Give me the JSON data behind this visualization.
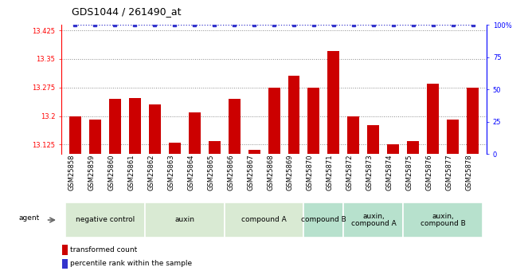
{
  "title": "GDS1044 / 261490_at",
  "samples": [
    "GSM25858",
    "GSM25859",
    "GSM25860",
    "GSM25861",
    "GSM25862",
    "GSM25863",
    "GSM25864",
    "GSM25865",
    "GSM25866",
    "GSM25867",
    "GSM25868",
    "GSM25869",
    "GSM25870",
    "GSM25871",
    "GSM25872",
    "GSM25873",
    "GSM25874",
    "GSM25875",
    "GSM25876",
    "GSM25877",
    "GSM25878"
  ],
  "values": [
    13.2,
    13.19,
    13.245,
    13.248,
    13.23,
    13.13,
    13.21,
    13.135,
    13.245,
    13.11,
    13.275,
    13.305,
    13.275,
    13.37,
    13.2,
    13.175,
    13.125,
    13.135,
    13.285,
    13.19,
    13.275
  ],
  "ylim_left": [
    13.1,
    13.44
  ],
  "ylim_right": [
    0,
    100
  ],
  "yticks_left": [
    13.125,
    13.2,
    13.275,
    13.35,
    13.425
  ],
  "yticks_right": [
    0,
    25,
    50,
    75,
    100
  ],
  "groups": [
    {
      "label": "negative control",
      "start": 0,
      "end": 4,
      "color": "#d9ead3"
    },
    {
      "label": "auxin",
      "start": 4,
      "end": 8,
      "color": "#d9ead3"
    },
    {
      "label": "compound A",
      "start": 8,
      "end": 12,
      "color": "#d9ead3"
    },
    {
      "label": "compound B",
      "start": 12,
      "end": 14,
      "color": "#b7e1cd"
    },
    {
      "label": "auxin,\ncompound A",
      "start": 14,
      "end": 17,
      "color": "#b7e1cd"
    },
    {
      "label": "auxin,\ncompound B",
      "start": 17,
      "end": 21,
      "color": "#b7e1cd"
    }
  ],
  "bar_color": "#cc0000",
  "percentile_color": "#3333cc",
  "background_color": "#ffffff",
  "title_fontsize": 9,
  "tick_fontsize": 6,
  "group_label_fontsize": 6.5,
  "legend_fontsize": 6.5,
  "base_value": 13.1
}
